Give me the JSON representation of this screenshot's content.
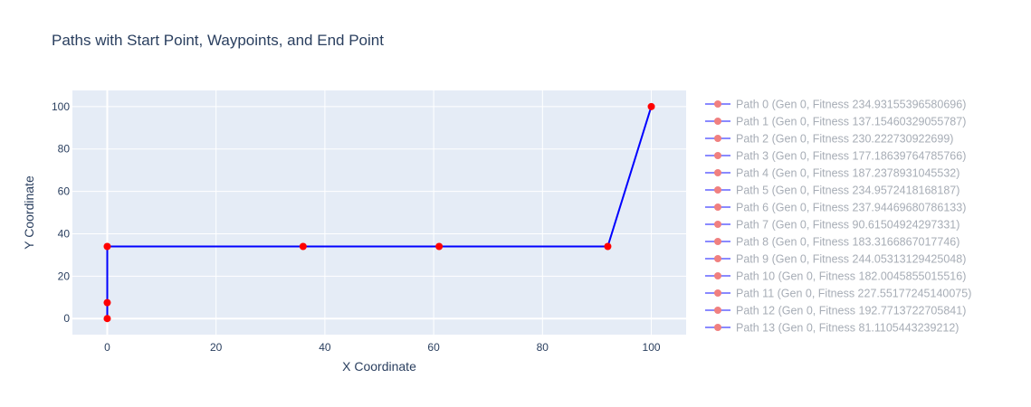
{
  "chart_data": {
    "type": "line",
    "title": "Paths with Start Point, Waypoints, and End Point",
    "xlabel": "X Coordinate",
    "ylabel": "Y Coordinate",
    "xlim": [
      -6.4,
      106.4
    ],
    "ylim": [
      -7.6,
      107.6
    ],
    "xticks": [
      0,
      20,
      40,
      60,
      80,
      100
    ],
    "yticks": [
      0,
      20,
      40,
      60,
      80,
      100
    ],
    "grid": true,
    "legend_position": "right",
    "colors": {
      "plot_bg": "#e5ecf6",
      "grid": "#ffffff",
      "path_line": "#0000ff",
      "marker": "#ff0000",
      "legend_line": "#8a8aff",
      "legend_marker": "#f08080",
      "text": "#2a3f5f",
      "legend_text": "#a7adb6"
    },
    "visible_path": {
      "x": [
        0,
        0,
        0,
        36,
        61,
        92,
        100
      ],
      "y": [
        0,
        7.5,
        34,
        34,
        34,
        34,
        100
      ]
    },
    "series": [
      {
        "name": "Path 0 (Gen 0, Fitness 234.93155396580696)"
      },
      {
        "name": "Path 1 (Gen 0, Fitness 137.15460329055787)"
      },
      {
        "name": "Path 2 (Gen 0, Fitness 230.222730922699)"
      },
      {
        "name": "Path 3 (Gen 0, Fitness 177.18639764785766)"
      },
      {
        "name": "Path 4 (Gen 0, Fitness 187.2378931045532)"
      },
      {
        "name": "Path 5 (Gen 0, Fitness 234.9572418168187)"
      },
      {
        "name": "Path 6 (Gen 0, Fitness 237.94469680786133)"
      },
      {
        "name": "Path 7 (Gen 0, Fitness 90.61504924297331)"
      },
      {
        "name": "Path 8 (Gen 0, Fitness 183.3166867017746)"
      },
      {
        "name": "Path 9 (Gen 0, Fitness 244.05313129425048)"
      },
      {
        "name": "Path 10 (Gen 0, Fitness 182.0045855015516)"
      },
      {
        "name": "Path 11 (Gen 0, Fitness 227.55177245140075)"
      },
      {
        "name": "Path 12 (Gen 0, Fitness 192.7713722705841)"
      },
      {
        "name": "Path 13 (Gen 0, Fitness 81.1105443239212)"
      }
    ]
  }
}
